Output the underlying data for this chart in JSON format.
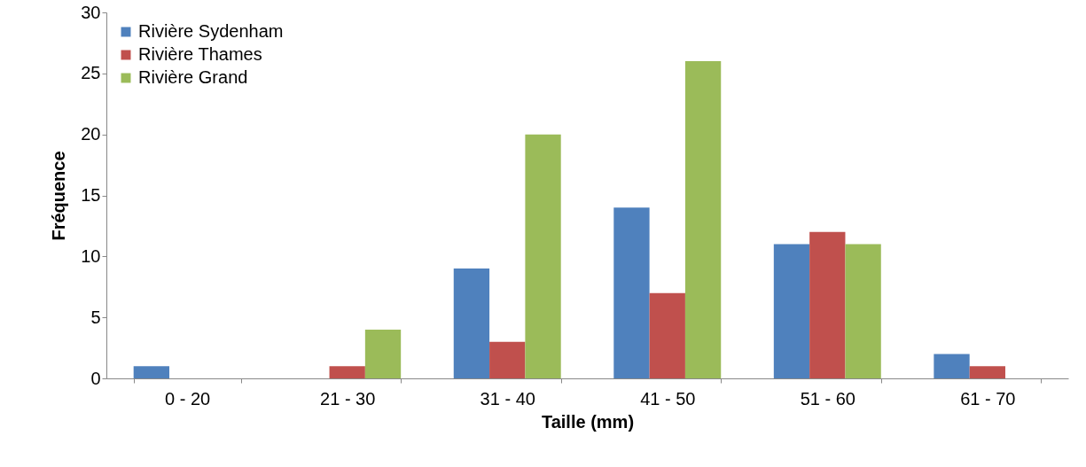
{
  "chart_data": {
    "type": "bar",
    "xlabel": "Taille (mm)",
    "ylabel": "Fréquence",
    "categories": [
      "0 - 20",
      "21 - 30",
      "31 - 40",
      "41 - 50",
      "51 - 60",
      "61 - 70"
    ],
    "series": [
      {
        "name": "Rivière Sydenham",
        "color": "#4f81bd",
        "values": [
          1,
          0,
          9,
          14,
          11,
          2
        ]
      },
      {
        "name": "Rivière Thames",
        "color": "#c0504d",
        "values": [
          0,
          1,
          3,
          7,
          12,
          1
        ]
      },
      {
        "name": "Rivière Grand",
        "color": "#9bbb59",
        "values": [
          0,
          4,
          20,
          26,
          11,
          0
        ]
      }
    ],
    "ylim": [
      0,
      30
    ],
    "yticks": [
      0,
      5,
      10,
      15,
      20,
      25,
      30
    ],
    "legend": "top left"
  }
}
